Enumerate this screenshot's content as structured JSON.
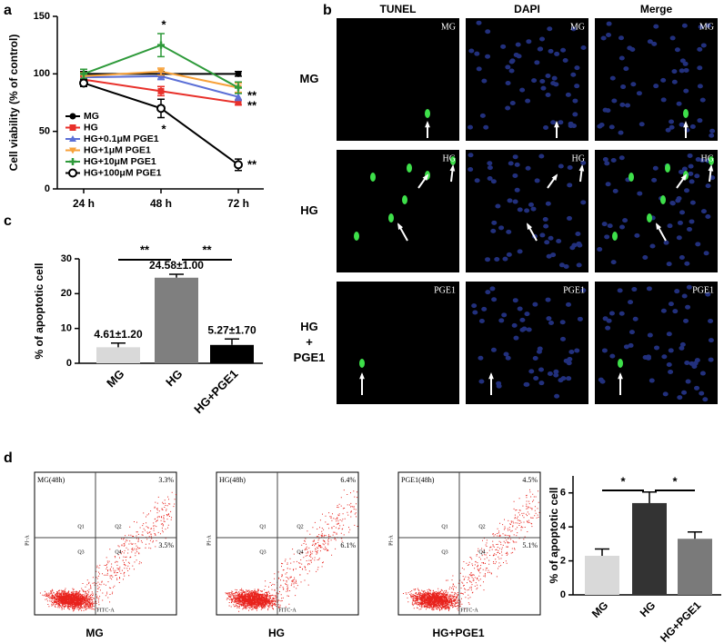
{
  "panels": [
    "a",
    "b",
    "c",
    "d"
  ],
  "chart_data": [
    {
      "type": "line",
      "ylabel": "Cell viability (% of control)",
      "categories": [
        "24 h",
        "48 h",
        "72 h"
      ],
      "ylim": [
        0,
        150
      ],
      "yticks": [
        0,
        50,
        100,
        150
      ],
      "series": [
        {
          "name": "MG",
          "color": "#000000",
          "marker": "circle",
          "values": [
            100,
            100,
            100
          ],
          "errors": [
            2,
            2,
            2
          ]
        },
        {
          "name": "HG",
          "color": "#e8302a",
          "marker": "square",
          "values": [
            95,
            85,
            75
          ],
          "errors": [
            3,
            4,
            2
          ]
        },
        {
          "name": "HG+0.1μM PGE1",
          "color": "#5b6fd6",
          "marker": "triangle",
          "values": [
            97,
            98,
            80
          ],
          "errors": [
            3,
            3,
            3
          ]
        },
        {
          "name": "HG+1μM PGE1",
          "color": "#f7a13a",
          "marker": "triangle-down",
          "values": [
            98,
            102,
            88
          ],
          "errors": [
            3,
            3,
            4
          ]
        },
        {
          "name": "HG+10μM PGE1",
          "color": "#2e9a3a",
          "marker": "plus",
          "values": [
            100,
            125,
            88
          ],
          "errors": [
            4,
            10,
            5
          ]
        },
        {
          "name": "HG+100μM PGE1",
          "color": "#000000",
          "marker": "circle-open",
          "values": [
            92,
            70,
            21
          ],
          "errors": [
            3,
            8,
            5
          ]
        }
      ],
      "annotations": [
        "*",
        "*",
        "**",
        "**",
        "**"
      ]
    },
    {
      "type": "bar",
      "ylabel": "% of apoptotic cell",
      "categories": [
        "MG",
        "HG",
        "HG+PGE1"
      ],
      "values": [
        4.61,
        24.58,
        5.27
      ],
      "errors": [
        1.2,
        1.0,
        1.7
      ],
      "value_labels": [
        "4.61±1.20",
        "24.58±1.00",
        "5.27±1.70"
      ],
      "colors": [
        "#d9d9d9",
        "#7f7f7f",
        "#000000"
      ],
      "ylim": [
        0,
        30
      ],
      "yticks": [
        0,
        10,
        20,
        30
      ],
      "significance": [
        "**",
        "**"
      ]
    },
    {
      "type": "bar",
      "ylabel": "% of apoptotic cell",
      "categories": [
        "MG",
        "HG",
        "HG+PGE1"
      ],
      "values": [
        2.3,
        5.4,
        3.3
      ],
      "errors": [
        0.4,
        0.65,
        0.4
      ],
      "colors": [
        "#d9d9d9",
        "#333333",
        "#7a7a7a"
      ],
      "ylim": [
        0,
        7
      ],
      "yticks": [
        0,
        2,
        4,
        6
      ],
      "significance": [
        "*",
        "*"
      ]
    }
  ],
  "tunel": {
    "columns": [
      "TUNEL",
      "DAPI",
      "Merge"
    ],
    "rows": [
      {
        "label": [
          "MG"
        ],
        "tag": "MG"
      },
      {
        "label": [
          "HG"
        ],
        "tag": "HG"
      },
      {
        "label": [
          "HG",
          "+",
          "PGE1"
        ],
        "tag": "PGE1"
      }
    ]
  },
  "flow": {
    "ylabel": "PI-A",
    "xlabel": "FITC-A",
    "quadrants": [
      "Q1",
      "Q2",
      "Q3",
      "Q4"
    ],
    "plots": [
      {
        "title": "MG(48h)",
        "upper_right": "3.3%",
        "lower_right": "3.5%",
        "label": "MG"
      },
      {
        "title": "HG(48h)",
        "upper_right": "6.4%",
        "lower_right": "6.1%",
        "label": "HG"
      },
      {
        "title": "PGE1(48h)",
        "upper_right": "4.5%",
        "lower_right": "5.1%",
        "label": "HG+PGE1"
      }
    ]
  }
}
